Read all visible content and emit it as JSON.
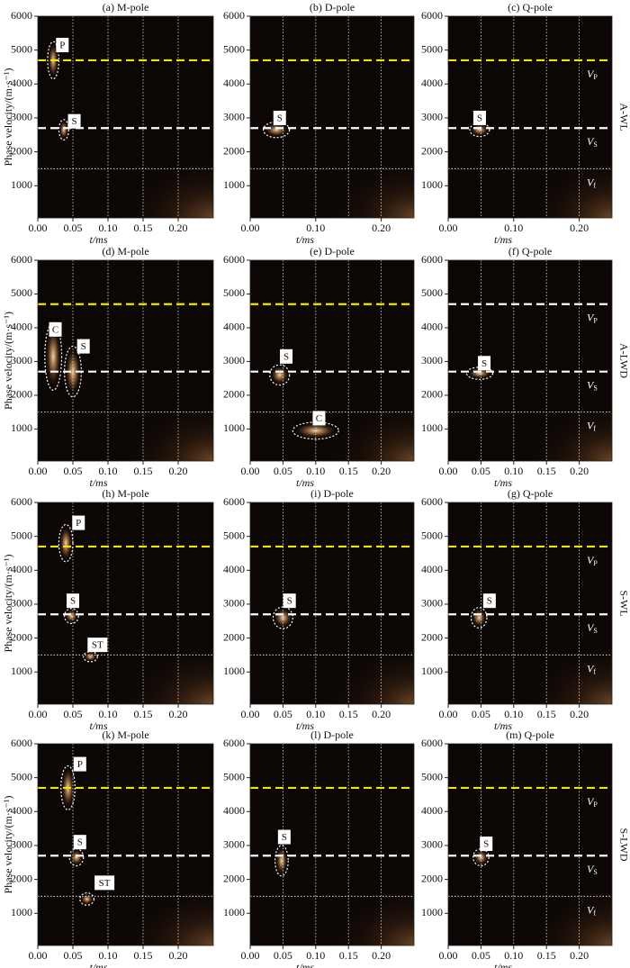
{
  "chart_data": [
    {
      "type": "heatmap",
      "title": "(a) M-pole",
      "ylabel": "Phase velocity/(m·s⁻¹)",
      "xlabel": "t/ms",
      "xlim": [
        0,
        0.25
      ],
      "ylim": [
        50,
        6000
      ],
      "xticks": [
        {
          "value": 0,
          "label": "0.00"
        },
        0.05,
        {
          "value": 0.1,
          "label": "0.10"
        },
        0.15,
        {
          "value": 0.2,
          "label": "0.20"
        }
      ],
      "xgrid": [
        0.05,
        0.1,
        0.15,
        0.2
      ],
      "yticks": [
        1000,
        2000,
        3000,
        4000,
        5000,
        6000
      ],
      "hlines": [
        {
          "value": 4700,
          "color": "#f2e600",
          "style": "dashed"
        },
        {
          "value": 2700,
          "color": "#ffffff",
          "style": "dashed"
        },
        {
          "value": 1500,
          "color": "#dddddd",
          "style": "dotted"
        }
      ],
      "annotations": [
        {
          "label": "P",
          "x": 0.022,
          "y": 4700,
          "rx": 0.008,
          "ry": 550,
          "label_x": 0.035,
          "label_y": 5150
        },
        {
          "label": "S",
          "x": 0.037,
          "y": 2650,
          "rx": 0.007,
          "ry": 300,
          "label_x": 0.052,
          "label_y": 2900
        }
      ]
    },
    {
      "type": "heatmap",
      "title": "(b) D-pole",
      "xlabel": "t/ms",
      "xlim": [
        0,
        0.25
      ],
      "ylim": [
        50,
        6000
      ],
      "xticks": [
        {
          "value": 0,
          "label": "0.00"
        },
        {
          "value": 0.1,
          "label": "0.10"
        },
        {
          "value": 0.2,
          "label": "0.20"
        }
      ],
      "xgrid": [
        0.05,
        0.1,
        0.15,
        0.2
      ],
      "yticks": [
        1000,
        2000,
        3000,
        4000,
        5000,
        6000
      ],
      "hlines": [
        {
          "value": 4700,
          "color": "#f2e600",
          "style": "dashed"
        },
        {
          "value": 2700,
          "color": "#ffffff",
          "style": "dashed"
        },
        {
          "value": 1500,
          "color": "#dddddd",
          "style": "dotted"
        }
      ],
      "annotations": [
        {
          "label": "S",
          "x": 0.04,
          "y": 2650,
          "rx": 0.02,
          "ry": 230,
          "label_x": 0.045,
          "label_y": 3000
        }
      ]
    },
    {
      "type": "heatmap",
      "title": "(c) Q-pole",
      "xlabel": "t/ms",
      "row_label": "A-WL",
      "xlim": [
        0,
        0.25
      ],
      "ylim": [
        50,
        6000
      ],
      "xticks": [
        {
          "value": 0,
          "label": "0.00"
        },
        {
          "value": 0.1,
          "label": "0.10"
        },
        {
          "value": 0.2,
          "label": "0.20"
        }
      ],
      "xgrid": [
        0.05,
        0.1,
        0.15,
        0.2
      ],
      "yticks": [
        1000,
        2000,
        3000,
        4000,
        5000,
        6000
      ],
      "hlines": [
        {
          "value": 4700,
          "color": "#f2e600",
          "style": "dashed",
          "label": "V",
          "sub": "P"
        },
        {
          "value": 2700,
          "color": "#ffffff",
          "style": "dashed",
          "label": "V",
          "sub": "S"
        },
        {
          "value": 1500,
          "color": "#dddddd",
          "style": "dotted",
          "label": "V",
          "sub": "f"
        }
      ],
      "annotations": [
        {
          "label": "S",
          "x": 0.048,
          "y": 2650,
          "rx": 0.015,
          "ry": 200,
          "label_x": 0.048,
          "label_y": 3000
        }
      ]
    },
    {
      "type": "heatmap",
      "title": "(d) M-pole",
      "ylabel": "Phase velocity/(m·s⁻¹)",
      "xlabel": "t/ms",
      "xlim": [
        0,
        0.25
      ],
      "ylim": [
        50,
        6000
      ],
      "xticks": [
        {
          "value": 0,
          "label": "0.00"
        },
        0.05,
        {
          "value": 0.1,
          "label": "0.10"
        },
        0.15,
        {
          "value": 0.2,
          "label": "0.20"
        }
      ],
      "xgrid": [
        0.05,
        0.1,
        0.15,
        0.2
      ],
      "yticks": [
        1000,
        2000,
        3000,
        4000,
        5000,
        6000
      ],
      "hlines": [
        {
          "value": 4700,
          "color": "#f2e600",
          "style": "dashed"
        },
        {
          "value": 2700,
          "color": "#ffffff",
          "style": "dashed"
        },
        {
          "value": 1500,
          "color": "#dddddd",
          "style": "dotted"
        }
      ],
      "annotations": [
        {
          "label": "C",
          "x": 0.022,
          "y": 3150,
          "rx": 0.012,
          "ry": 1000,
          "label_x": 0.025,
          "label_y": 3950
        },
        {
          "label": "S",
          "x": 0.05,
          "y": 2700,
          "rx": 0.012,
          "ry": 750,
          "label_x": 0.065,
          "label_y": 3450
        }
      ]
    },
    {
      "type": "heatmap",
      "title": "(e) D-pole",
      "xlabel": "t/ms",
      "xlim": [
        0,
        0.25
      ],
      "ylim": [
        50,
        6000
      ],
      "xticks": [
        {
          "value": 0,
          "label": "0.00"
        },
        0.05,
        {
          "value": 0.1,
          "label": "0.10"
        },
        0.15,
        {
          "value": 0.2,
          "label": "0.20"
        }
      ],
      "xgrid": [
        0.05,
        0.1,
        0.15,
        0.2
      ],
      "yticks": [
        1000,
        2000,
        3000,
        4000,
        5000,
        6000
      ],
      "hlines": [
        {
          "value": 4700,
          "color": "#f2e600",
          "style": "dashed"
        },
        {
          "value": 2700,
          "color": "#ffffff",
          "style": "dashed"
        },
        {
          "value": 1500,
          "color": "#dddddd",
          "style": "dotted"
        }
      ],
      "annotations": [
        {
          "label": "S",
          "x": 0.045,
          "y": 2600,
          "rx": 0.015,
          "ry": 300,
          "label_x": 0.055,
          "label_y": 3150
        },
        {
          "label": "C",
          "x": 0.1,
          "y": 950,
          "rx": 0.035,
          "ry": 250,
          "label_x": 0.105,
          "label_y": 1320
        }
      ]
    },
    {
      "type": "heatmap",
      "title": "(f) Q-pole",
      "xlabel": "t/ms",
      "row_label": "A-LWD",
      "xlim": [
        0,
        0.25
      ],
      "ylim": [
        50,
        6000
      ],
      "xticks": [
        {
          "value": 0,
          "label": "0.00"
        },
        0.05,
        {
          "value": 0.1,
          "label": "0.10"
        },
        0.15,
        {
          "value": 0.2,
          "label": "0.20"
        }
      ],
      "xgrid": [
        0.05,
        0.1,
        0.15,
        0.2
      ],
      "yticks": [
        1000,
        2000,
        3000,
        4000,
        5000,
        6000
      ],
      "hlines": [
        {
          "value": 4700,
          "color": "#ffffff",
          "style": "dashed",
          "label": "V",
          "sub": "P"
        },
        {
          "value": 2700,
          "color": "#ffffff",
          "style": "dashed",
          "label": "V",
          "sub": "S"
        },
        {
          "value": 1500,
          "color": "#dddddd",
          "style": "dotted",
          "label": "V",
          "sub": "f"
        }
      ],
      "annotations": [
        {
          "label": "S",
          "x": 0.048,
          "y": 2650,
          "rx": 0.02,
          "ry": 180,
          "label_x": 0.055,
          "label_y": 2950
        }
      ]
    },
    {
      "type": "heatmap",
      "title": "(h) M-pole",
      "ylabel": "Phase velocity/(m·s⁻¹)",
      "xlabel": "t/ms",
      "xlim": [
        0,
        0.25
      ],
      "ylim": [
        50,
        6000
      ],
      "xticks": [
        {
          "value": 0,
          "label": "0.00"
        },
        0.05,
        {
          "value": 0.1,
          "label": "0.10"
        },
        0.15,
        {
          "value": 0.2,
          "label": "0.20"
        }
      ],
      "xgrid": [
        0.05,
        0.1,
        0.15,
        0.2
      ],
      "yticks": [
        1000,
        2000,
        3000,
        4000,
        5000,
        6000
      ],
      "hlines": [
        {
          "value": 4700,
          "color": "#f2e600",
          "style": "dashed"
        },
        {
          "value": 2700,
          "color": "#ffffff",
          "style": "dashed"
        },
        {
          "value": 1500,
          "color": "#dddddd",
          "style": "dotted"
        }
      ],
      "annotations": [
        {
          "label": "P",
          "x": 0.04,
          "y": 4800,
          "rx": 0.01,
          "ry": 550,
          "label_x": 0.058,
          "label_y": 5400
        },
        {
          "label": "S",
          "x": 0.048,
          "y": 2650,
          "rx": 0.01,
          "ry": 220,
          "label_x": 0.05,
          "label_y": 3100
        },
        {
          "label": "ST",
          "x": 0.075,
          "y": 1450,
          "rx": 0.01,
          "ry": 150,
          "label_x": 0.085,
          "label_y": 1800
        }
      ]
    },
    {
      "type": "heatmap",
      "title": "(i) D-pole",
      "xlabel": "t/ms",
      "xlim": [
        0,
        0.25
      ],
      "ylim": [
        50,
        6000
      ],
      "xticks": [
        {
          "value": 0,
          "label": "0.00"
        },
        0.05,
        {
          "value": 0.1,
          "label": "0.10"
        },
        0.15,
        {
          "value": 0.2,
          "label": "0.20"
        }
      ],
      "xgrid": [
        0.05,
        0.1,
        0.15,
        0.2
      ],
      "yticks": [
        1000,
        2000,
        3000,
        4000,
        5000,
        6000
      ],
      "hlines": [
        {
          "value": 4700,
          "color": "#f2e600",
          "style": "dashed"
        },
        {
          "value": 2700,
          "color": "#ffffff",
          "style": "dashed"
        },
        {
          "value": 1500,
          "color": "#dddddd",
          "style": "dotted"
        }
      ],
      "annotations": [
        {
          "label": "S",
          "x": 0.05,
          "y": 2600,
          "rx": 0.015,
          "ry": 320,
          "label_x": 0.06,
          "label_y": 3100
        }
      ]
    },
    {
      "type": "heatmap",
      "title": "(g) Q-pole",
      "xlabel": "t/ms",
      "row_label": "S-WL",
      "xlim": [
        0,
        0.25
      ],
      "ylim": [
        50,
        6000
      ],
      "xticks": [
        {
          "value": 0,
          "label": "0.00"
        },
        0.05,
        {
          "value": 0.1,
          "label": "0.10"
        },
        0.15,
        {
          "value": 0.2,
          "label": "0.20"
        }
      ],
      "xgrid": [
        0.05,
        0.1,
        0.15,
        0.2
      ],
      "yticks": [
        1000,
        2000,
        3000,
        4000,
        5000,
        6000
      ],
      "hlines": [
        {
          "value": 4700,
          "color": "#f2e600",
          "style": "dashed",
          "label": "V",
          "sub": "P"
        },
        {
          "value": 2700,
          "color": "#ffffff",
          "style": "dashed",
          "label": "V",
          "sub": "S"
        },
        {
          "value": 1500,
          "color": "#dddddd",
          "style": "dotted",
          "label": "V",
          "sub": "f"
        }
      ],
      "annotations": [
        {
          "label": "S",
          "x": 0.047,
          "y": 2600,
          "rx": 0.012,
          "ry": 300,
          "label_x": 0.063,
          "label_y": 3100
        }
      ]
    },
    {
      "type": "heatmap",
      "title": "(k) M-pole",
      "ylabel": "Phase velocity/(m·s⁻¹)",
      "xlabel": "t/ms",
      "xlim": [
        0,
        0.25
      ],
      "ylim": [
        50,
        6000
      ],
      "xticks": [
        {
          "value": 0,
          "label": "0.00"
        },
        0.05,
        {
          "value": 0.1,
          "label": "0.10"
        },
        0.15,
        {
          "value": 0.2,
          "label": "0.20"
        }
      ],
      "xgrid": [
        0.05,
        0.1,
        0.15,
        0.2
      ],
      "yticks": [
        1000,
        2000,
        3000,
        4000,
        5000,
        6000
      ],
      "hlines": [
        {
          "value": 4700,
          "color": "#f2e600",
          "style": "dashed"
        },
        {
          "value": 2700,
          "color": "#ffffff",
          "style": "dashed"
        },
        {
          "value": 1500,
          "color": "#dddddd",
          "style": "dotted"
        }
      ],
      "annotations": [
        {
          "label": "P",
          "x": 0.043,
          "y": 4700,
          "rx": 0.01,
          "ry": 650,
          "label_x": 0.06,
          "label_y": 5400
        },
        {
          "label": "S",
          "x": 0.055,
          "y": 2650,
          "rx": 0.01,
          "ry": 250,
          "label_x": 0.06,
          "label_y": 3100
        },
        {
          "label": "ST",
          "x": 0.07,
          "y": 1420,
          "rx": 0.01,
          "ry": 180,
          "label_x": 0.095,
          "label_y": 1900
        }
      ]
    },
    {
      "type": "heatmap",
      "title": "(l) D-pole",
      "xlabel": "t/ms",
      "xlim": [
        0,
        0.25
      ],
      "ylim": [
        50,
        6000
      ],
      "xticks": [
        {
          "value": 0,
          "label": "0.00"
        },
        0.05,
        {
          "value": 0.1,
          "label": "0.10"
        },
        0.15,
        {
          "value": 0.2,
          "label": "0.20"
        }
      ],
      "xgrid": [
        0.05,
        0.1,
        0.15,
        0.2
      ],
      "yticks": [
        1000,
        2000,
        3000,
        4000,
        5000,
        6000
      ],
      "hlines": [
        {
          "value": 4700,
          "color": "#f2e600",
          "style": "dashed"
        },
        {
          "value": 2700,
          "color": "#ffffff",
          "style": "dashed"
        },
        {
          "value": 1500,
          "color": "#dddddd",
          "style": "dotted"
        }
      ],
      "annotations": [
        {
          "label": "S",
          "x": 0.048,
          "y": 2550,
          "rx": 0.01,
          "ry": 450,
          "label_x": 0.052,
          "label_y": 3250
        }
      ]
    },
    {
      "type": "heatmap",
      "title": "(m) Q-pole",
      "xlabel": "t/ms",
      "row_label": "S-LWD",
      "xlim": [
        0,
        0.25
      ],
      "ylim": [
        50,
        6000
      ],
      "xticks": [
        {
          "value": 0,
          "label": "0.00"
        },
        0.05,
        {
          "value": 0.1,
          "label": "0.10"
        },
        0.15,
        {
          "value": 0.2,
          "label": "0.20"
        }
      ],
      "xgrid": [
        0.05,
        0.1,
        0.15,
        0.2
      ],
      "yticks": [
        1000,
        2000,
        3000,
        4000,
        5000,
        6000
      ],
      "hlines": [
        {
          "value": 4700,
          "color": "#f2e600",
          "style": "dashed",
          "label": "V",
          "sub": "P"
        },
        {
          "value": 2700,
          "color": "#ffffff",
          "style": "dashed",
          "label": "V",
          "sub": "S"
        },
        {
          "value": 1500,
          "color": "#dddddd",
          "style": "dotted",
          "label": "V",
          "sub": "f"
        }
      ],
      "annotations": [
        {
          "label": "S",
          "x": 0.05,
          "y": 2650,
          "rx": 0.012,
          "ry": 250,
          "label_x": 0.058,
          "label_y": 3050
        }
      ]
    }
  ]
}
